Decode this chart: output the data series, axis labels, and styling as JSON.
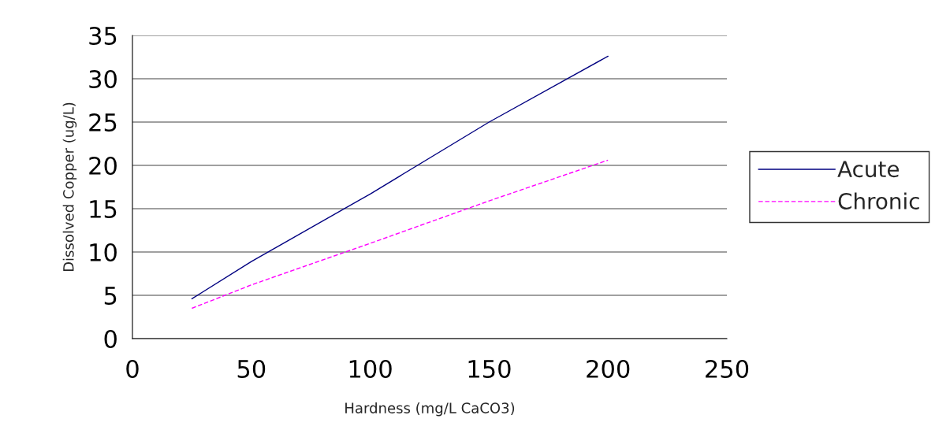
{
  "chart_data": {
    "type": "line",
    "xlabel": "Hardness (mg/L CaCO3)",
    "ylabel": "Dissolved Copper (ug/L)",
    "x": [
      25,
      50,
      100,
      150,
      200
    ],
    "series": [
      {
        "name": "Acute",
        "color": "#000080",
        "line_style": "solid",
        "values": [
          4.6,
          8.9,
          16.7,
          25.0,
          32.6
        ]
      },
      {
        "name": "Chronic",
        "color": "#ff00ff",
        "line_style": "dashed",
        "values": [
          3.5,
          6.2,
          11.0,
          15.9,
          20.6
        ]
      }
    ],
    "xlim": [
      0,
      250
    ],
    "xticks": [
      0,
      50,
      100,
      150,
      200,
      250
    ],
    "ylim": [
      0,
      35
    ],
    "yticks": [
      0,
      5,
      10,
      15,
      20,
      25,
      30,
      35
    ],
    "grid": "y",
    "legend": "right",
    "marker": "none"
  }
}
